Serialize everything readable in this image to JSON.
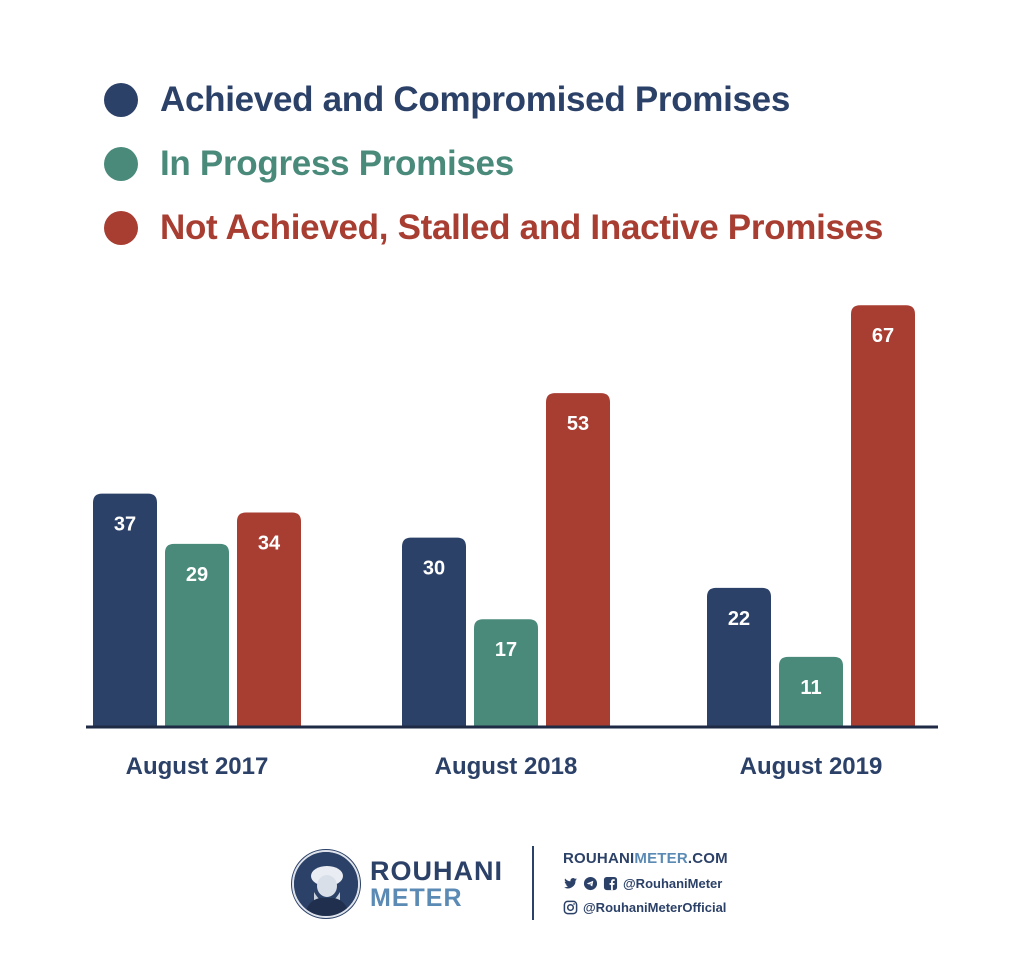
{
  "legend": [
    {
      "label": "Achieved and Compromised Promises",
      "color": "#2c4168"
    },
    {
      "label": "In Progress Promises",
      "color": "#4a8a7a"
    },
    {
      "label": "Not Achieved, Stalled and Inactive Promises",
      "color": "#a83d32"
    }
  ],
  "chart_data": {
    "type": "bar",
    "categories": [
      "August 2017",
      "August 2018",
      "August 2019"
    ],
    "series": [
      {
        "name": "Achieved and Compromised Promises",
        "color": "#2c4168",
        "values": [
          37,
          30,
          22
        ]
      },
      {
        "name": "In Progress Promises",
        "color": "#4a8a7a",
        "values": [
          29,
          17,
          11
        ]
      },
      {
        "name": "Not Achieved, Stalled and Inactive Promises",
        "color": "#a83d32",
        "values": [
          34,
          53,
          67
        ]
      }
    ],
    "ylim": [
      0,
      70
    ],
    "grid": false,
    "legend_position": "top-left"
  },
  "footer": {
    "brand_line1": "ROUHANI",
    "brand_line2": "METER",
    "site_part1": "ROUHANI",
    "site_part2": "METER",
    "site_part3": ".COM",
    "handle_main": "@RouhaniMeter",
    "handle_instagram": "@RouhaniMeterOfficial",
    "icons": [
      "twitter-icon",
      "telegram-icon",
      "facebook-icon",
      "instagram-icon"
    ]
  }
}
